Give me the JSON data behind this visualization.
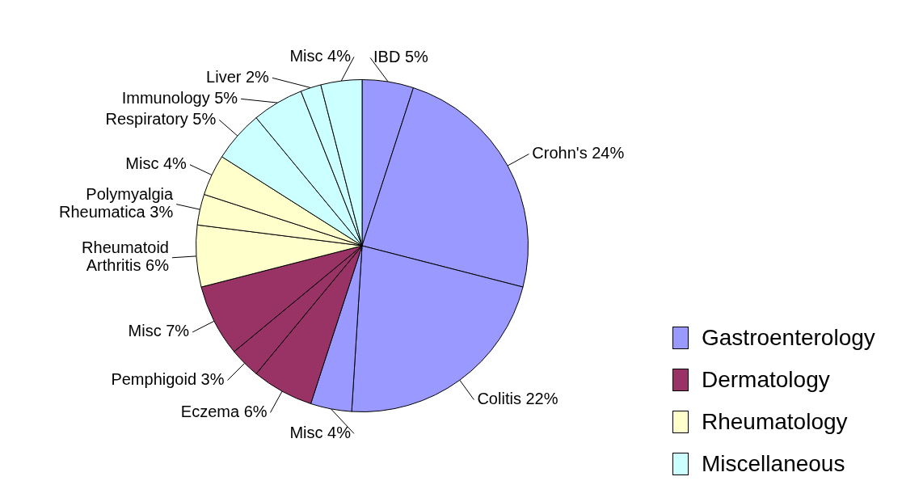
{
  "chart_data": {
    "type": "pie",
    "categories": [
      "IBD",
      "Crohn's",
      "Colitis",
      "Misc",
      "Eczema",
      "Pemphigoid",
      "Misc",
      "Rheumatoid Arthritis",
      "Polymyalgia Rheumatica",
      "Misc",
      "Respiratory",
      "Immunology",
      "Liver",
      "Misc"
    ],
    "values": [
      5,
      24,
      22,
      4,
      6,
      3,
      7,
      6,
      3,
      4,
      5,
      5,
      2,
      4
    ],
    "colors": [
      "#9999ff",
      "#9999ff",
      "#9999ff",
      "#9999ff",
      "#993366",
      "#993366",
      "#993366",
      "#ffffcc",
      "#ffffcc",
      "#ffffcc",
      "#ccffff",
      "#ccffff",
      "#ccffff",
      "#ccffff"
    ],
    "value_labels": [
      "5%",
      "24%",
      "22%",
      "4%",
      "6%",
      "3%",
      "7%",
      "6%",
      "3%",
      "4%",
      "5%",
      "5%",
      "2%",
      "4%"
    ],
    "annotations": [
      "Gastroenterology",
      "Dermatology",
      "Rheumatology",
      "Miscellaneous"
    ]
  }
}
